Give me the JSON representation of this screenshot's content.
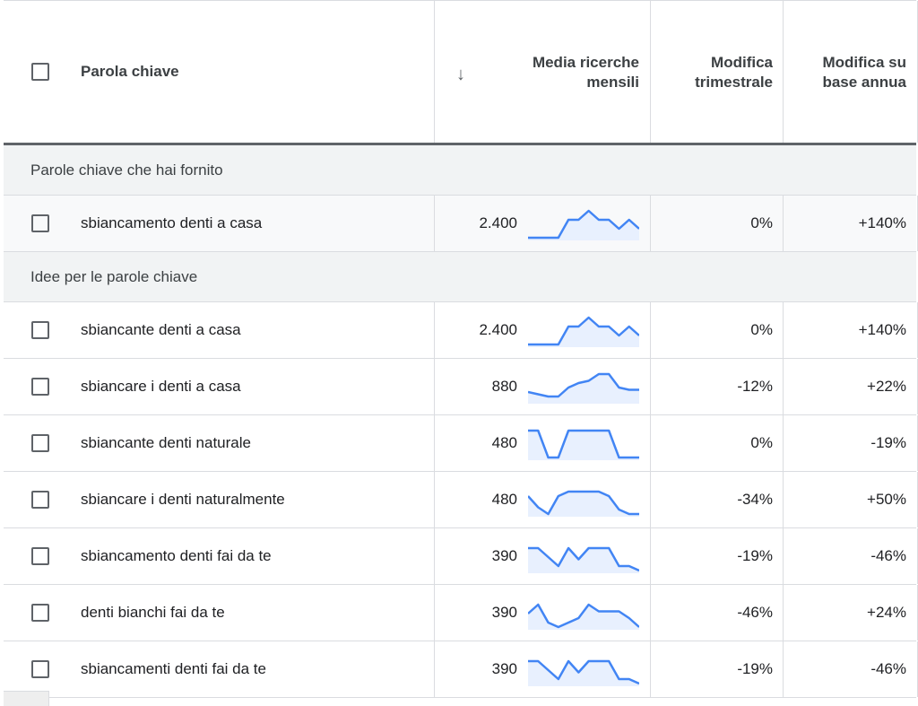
{
  "header": {
    "keyword_label": "Parola chiave",
    "sort_icon_glyph": "↓",
    "volume_label_line1": "Media ricerche",
    "volume_label_line2": "mensili",
    "quarterly_label_line1": "Modifica",
    "quarterly_label_line2": "trimestrale",
    "yoy_label_line1": "Modifica su",
    "yoy_label_line2": "base annua"
  },
  "colors": {
    "sparkline_stroke": "#4285f4",
    "sparkline_fill": "#e8f0fe",
    "group_background": "#f1f3f4"
  },
  "groups": {
    "provided": "Parole chiave che hai fornito",
    "ideas": "Idee per le parole chiave"
  },
  "provided_rows": [
    {
      "keyword": "sbiancamento denti a casa",
      "volume": "2.400",
      "trend": [
        0,
        0,
        0,
        0,
        4,
        4,
        6,
        4,
        4,
        2,
        4,
        2
      ],
      "quarterly": "0%",
      "yoy": "+140%"
    }
  ],
  "idea_rows": [
    {
      "keyword": "sbiancante denti a casa",
      "volume": "2.400",
      "trend": [
        0,
        0,
        0,
        0,
        4,
        4,
        6,
        4,
        4,
        2,
        4,
        2
      ],
      "quarterly": "0%",
      "yoy": "+140%"
    },
    {
      "keyword": "sbiancare i denti a casa",
      "volume": "880",
      "trend": [
        2,
        1.5,
        1,
        1,
        3,
        4,
        4.5,
        6,
        6,
        3,
        2.5,
        2.5
      ],
      "quarterly": "-12%",
      "yoy": "+22%"
    },
    {
      "keyword": "sbiancante denti naturale",
      "volume": "480",
      "trend": [
        6,
        6,
        0,
        0,
        6,
        6,
        6,
        6,
        6,
        0,
        0,
        0
      ],
      "quarterly": "0%",
      "yoy": "-19%"
    },
    {
      "keyword": "sbiancare i denti naturalmente",
      "volume": "480",
      "trend": [
        4,
        1.5,
        0,
        4,
        5,
        5,
        5,
        5,
        4,
        1,
        0,
        0
      ],
      "quarterly": "-34%",
      "yoy": "+50%"
    },
    {
      "keyword": "sbiancamento denti fai da te",
      "volume": "390",
      "trend": [
        5,
        5,
        3,
        1,
        5,
        2.5,
        5,
        5,
        5,
        1,
        1,
        0
      ],
      "quarterly": "-19%",
      "yoy": "-46%"
    },
    {
      "keyword": "denti bianchi fai da te",
      "volume": "390",
      "trend": [
        3,
        5,
        1,
        0,
        1,
        2,
        5,
        3.5,
        3.5,
        3.5,
        2,
        0
      ],
      "quarterly": "-46%",
      "yoy": "+24%"
    },
    {
      "keyword": "sbiancamenti denti fai da te",
      "volume": "390",
      "trend": [
        5,
        5,
        3,
        1,
        5,
        2.5,
        5,
        5,
        5,
        1,
        1,
        0
      ],
      "quarterly": "-19%",
      "yoy": "-46%"
    }
  ]
}
